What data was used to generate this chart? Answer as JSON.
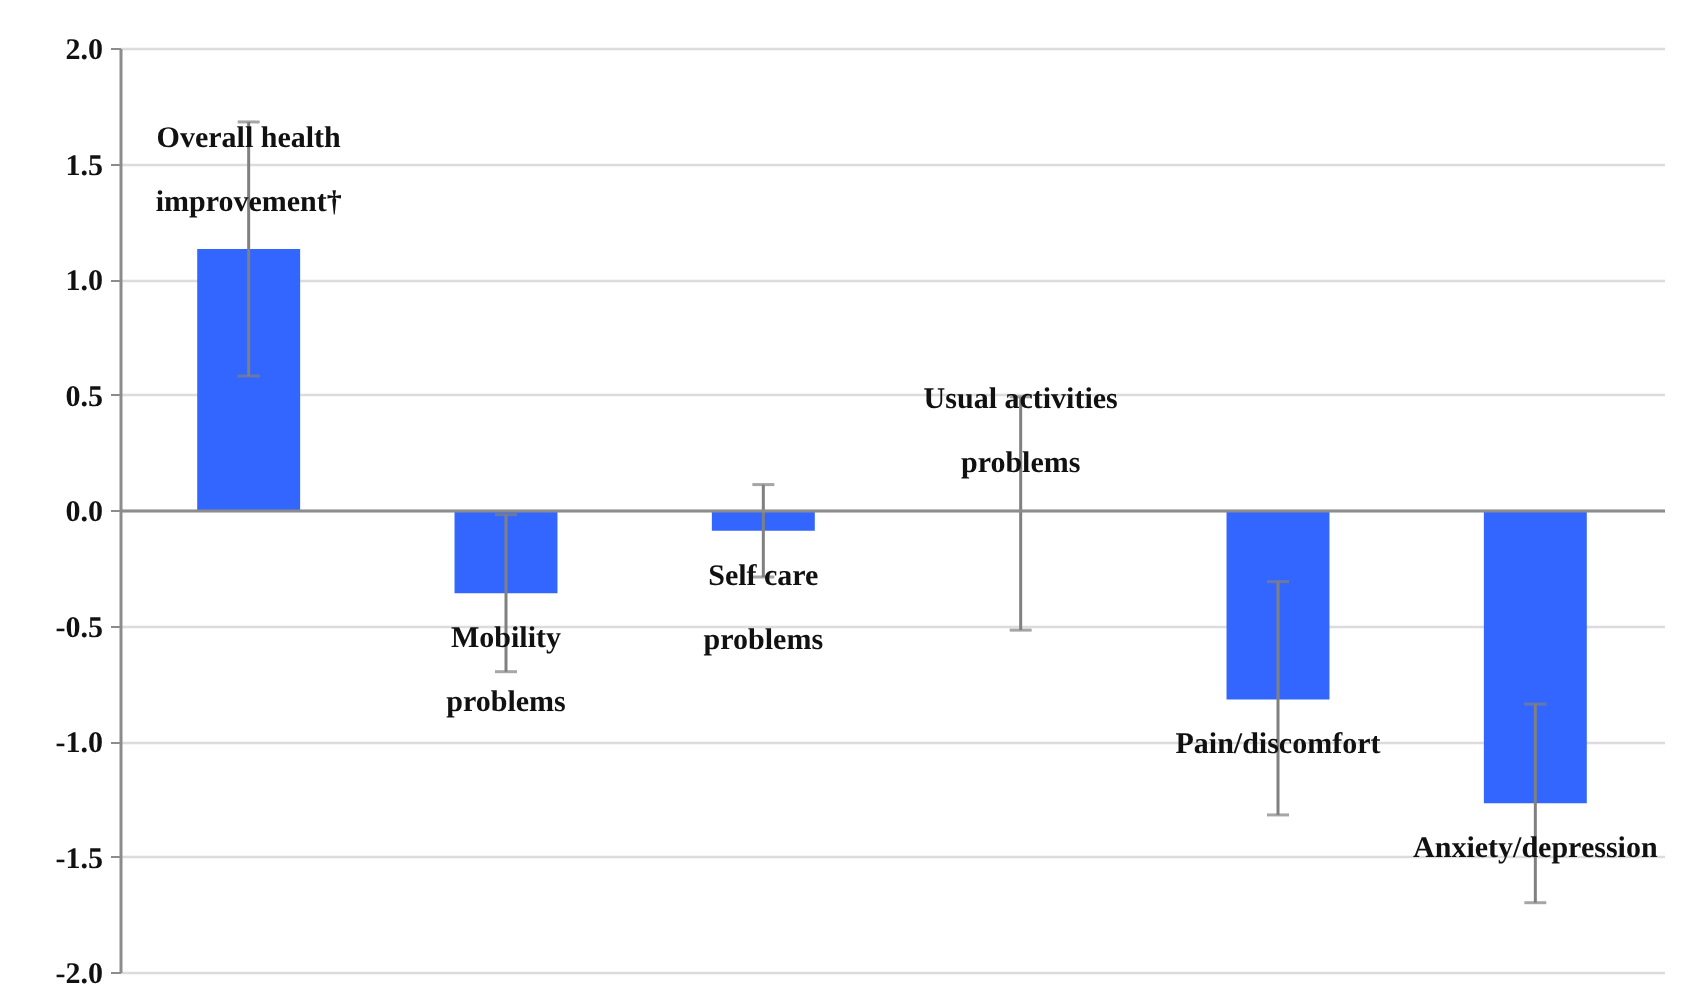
{
  "chart_data": {
    "type": "bar",
    "categories": [
      "Overall health improvement†",
      "Mobility problems",
      "Self care problems",
      "Usual activities problems",
      "Pain/discomfort",
      "Anxiety/depression"
    ],
    "values": [
      1.13,
      -0.36,
      -0.09,
      0.0,
      -0.82,
      -1.27
    ],
    "errors": [
      [
        0.58,
        1.68
      ],
      [
        -0.7,
        -0.02
      ],
      [
        -0.29,
        0.11
      ],
      [
        -0.52,
        0.49
      ],
      [
        -1.32,
        -0.31
      ],
      [
        -1.7,
        -0.84
      ]
    ],
    "color": "#3366ff",
    "ylim": [
      -2,
      2
    ],
    "yticks": [
      {
        "value": 2,
        "label": "2.0"
      },
      {
        "value": 1.5,
        "label": "1.5"
      },
      {
        "value": 1,
        "label": "1.0"
      },
      {
        "value": 0.5,
        "label": "0.5"
      },
      {
        "value": 0,
        "label": "0.0"
      },
      {
        "value": -0.5,
        "label": "-0.5"
      },
      {
        "value": -1,
        "label": "-1.0"
      },
      {
        "value": -1.5,
        "label": "-1.5"
      },
      {
        "value": -2,
        "label": "-2.0"
      }
    ],
    "grid": "y"
  }
}
